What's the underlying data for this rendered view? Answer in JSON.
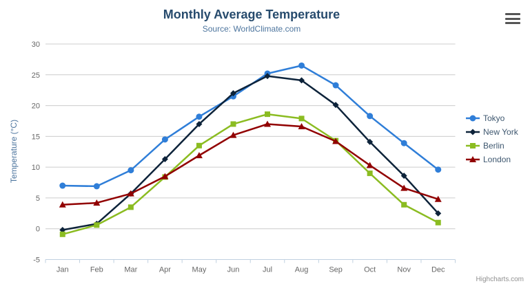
{
  "header": {
    "title": "Monthly Average Temperature",
    "subtitle": "Source: WorldClimate.com"
  },
  "y_axis": {
    "title": "Temperature (°C)"
  },
  "credits": {
    "label": "Highcharts.com"
  },
  "icons": {
    "context_menu": "hamburger-menu"
  },
  "colors": {
    "title": "#274b6d",
    "subtitle": "#4d759e",
    "y_axis_title": "#4d759e",
    "axis_labels": "#666666",
    "grid_line": "#cccccc",
    "axis_line": "#c0d0e0",
    "legend_text": "#3e576f",
    "credits": "#909090",
    "burger_icon": "#555555"
  },
  "chart_data": {
    "type": "line",
    "title": "Monthly Average Temperature",
    "subtitle": "Source: WorldClimate.com",
    "xlabel": "",
    "ylabel": "Temperature (°C)",
    "ylim": [
      -5,
      30
    ],
    "yticks": [
      -5,
      0,
      5,
      10,
      15,
      20,
      25,
      30
    ],
    "grid": true,
    "legend_position": "right",
    "categories": [
      "Jan",
      "Feb",
      "Mar",
      "Apr",
      "May",
      "Jun",
      "Jul",
      "Aug",
      "Sep",
      "Oct",
      "Nov",
      "Dec"
    ],
    "series": [
      {
        "name": "Tokyo",
        "color": "#2f7ed8",
        "marker": "circle",
        "values": [
          7.0,
          6.9,
          9.5,
          14.5,
          18.2,
          21.5,
          25.2,
          26.5,
          23.3,
          18.3,
          13.9,
          9.6
        ]
      },
      {
        "name": "New York",
        "color": "#0d233a",
        "marker": "diamond",
        "values": [
          -0.2,
          0.8,
          5.7,
          11.3,
          17.0,
          22.0,
          24.8,
          24.1,
          20.1,
          14.1,
          8.6,
          2.5
        ]
      },
      {
        "name": "Berlin",
        "color": "#8bbc21",
        "marker": "square",
        "values": [
          -0.9,
          0.6,
          3.5,
          8.4,
          13.5,
          17.0,
          18.6,
          17.9,
          14.3,
          9.0,
          3.9,
          1.0
        ]
      },
      {
        "name": "London",
        "color": "#910000",
        "marker": "triangle",
        "values": [
          3.9,
          4.2,
          5.7,
          8.5,
          11.9,
          15.2,
          17.0,
          16.6,
          14.2,
          10.3,
          6.6,
          4.8
        ]
      }
    ]
  }
}
